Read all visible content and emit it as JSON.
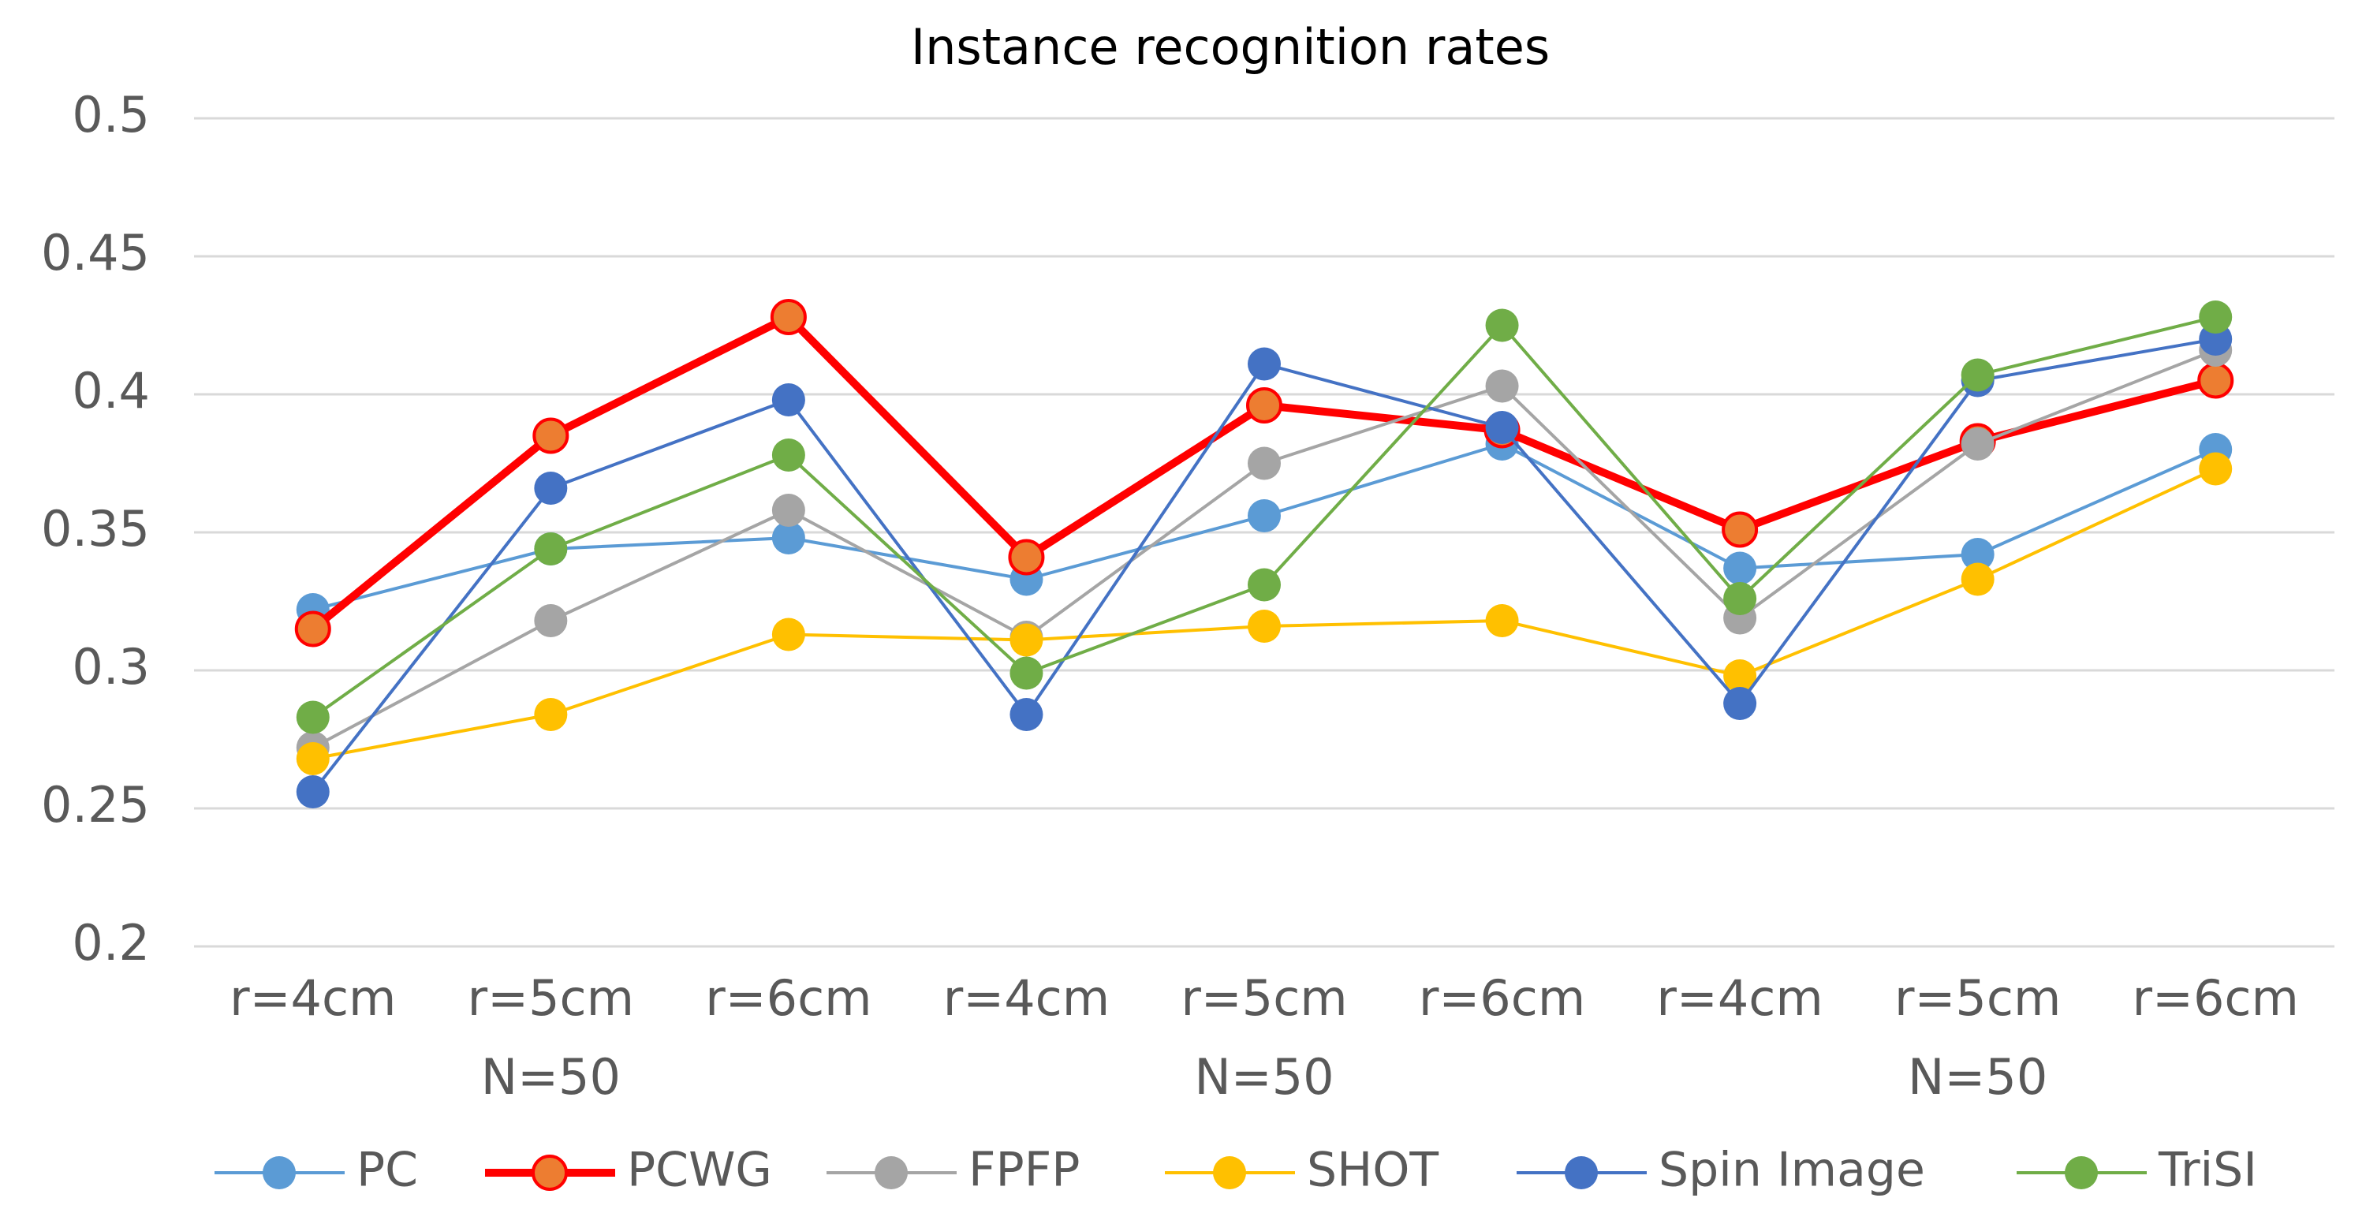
{
  "chart_data": {
    "type": "line",
    "title": "Instance recognition rates",
    "categories": [
      "r=4cm",
      "r=5cm",
      "r=6cm",
      "r=4cm",
      "r=5cm",
      "r=6cm",
      "r=4cm",
      "r=5cm",
      "r=6cm"
    ],
    "group_labels": [
      "N=50",
      "N=50",
      "N=50"
    ],
    "ylim": [
      0.2,
      0.5
    ],
    "yticks": [
      0.2,
      0.25,
      0.3,
      0.35,
      0.4,
      0.45,
      0.5
    ],
    "grid": true,
    "legend": "bottom",
    "series": [
      {
        "name": "PC",
        "color": "#5b9bd5",
        "values": [
          0.322,
          0.344,
          0.348,
          0.333,
          0.356,
          0.382,
          0.337,
          0.342,
          0.38
        ]
      },
      {
        "name": "PCWG",
        "color": "#ff0000",
        "marker_fill": "#ed7d31",
        "line_width": 10,
        "values": [
          0.315,
          0.385,
          0.428,
          0.341,
          0.396,
          0.387,
          0.351,
          0.383,
          0.405
        ]
      },
      {
        "name": "FPFP",
        "color": "#a5a5a5",
        "values": [
          0.272,
          0.318,
          0.358,
          0.312,
          0.375,
          0.403,
          0.319,
          0.382,
          0.416
        ]
      },
      {
        "name": "SHOT",
        "color": "#ffc000",
        "values": [
          0.268,
          0.284,
          0.313,
          0.311,
          0.316,
          0.318,
          0.298,
          0.333,
          0.373
        ]
      },
      {
        "name": "Spin Image",
        "color": "#4472c4",
        "values": [
          0.256,
          0.366,
          0.398,
          0.284,
          0.411,
          0.388,
          0.288,
          0.405,
          0.42
        ]
      },
      {
        "name": "TriSI",
        "color": "#70ad47",
        "values": [
          0.283,
          0.344,
          0.378,
          0.299,
          0.331,
          0.425,
          0.326,
          0.407,
          0.428
        ]
      }
    ]
  }
}
